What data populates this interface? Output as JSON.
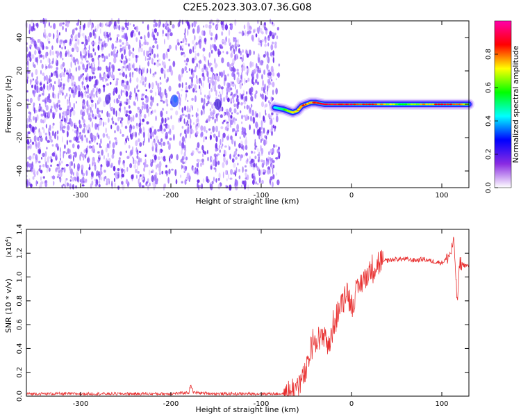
{
  "title": "C2E5.2023.303.07.36.G08",
  "chart_data": [
    {
      "type": "heatmap",
      "title": "C2E5.2023.303.07.36.G08",
      "xlabel": "Height of straight line (km)",
      "ylabel": "Frequency (Hz)",
      "xlim": [
        -360,
        130
      ],
      "ylim": [
        -50,
        50
      ],
      "xticks": [
        -300,
        -200,
        -100,
        0,
        100
      ],
      "yticks": [
        -40,
        -20,
        0,
        20,
        40
      ],
      "colorbar": {
        "label": "Normalized spectral amplitude",
        "range": [
          0.0,
          1.0
        ],
        "ticks": [
          0.0,
          0.2,
          0.4,
          0.6,
          0.8
        ],
        "tick_labels": [
          "0.0",
          "0.2",
          "0.4",
          "0.6",
          "0.8"
        ],
        "colors": [
          "#ffffff",
          "#8a2be2",
          "#0000ff",
          "#00ffff",
          "#00ff00",
          "#ffff00",
          "#ff0000",
          "#ff00aa"
        ]
      },
      "noise_region_x": [
        -360,
        -80
      ],
      "signal_track": {
        "x": [
          -85,
          -75,
          -70,
          -65,
          -60,
          -55,
          -50,
          -45,
          -40,
          -30,
          -20,
          -10,
          0,
          20,
          40,
          60,
          80,
          100,
          120,
          130
        ],
        "freq": [
          -2,
          -3,
          -4,
          -5,
          -4,
          -1,
          0,
          1,
          1,
          0,
          0,
          0,
          0,
          0,
          0,
          0,
          0,
          0,
          0,
          0
        ],
        "peak_amplitude": [
          0.45,
          0.6,
          0.7,
          0.75,
          0.8,
          0.85,
          0.85,
          0.8,
          0.9,
          0.95,
          0.95,
          0.95,
          0.95,
          0.9,
          0.75,
          0.6,
          0.8,
          0.95,
          0.85,
          0.7
        ]
      }
    },
    {
      "type": "line",
      "xlabel": "Height of straight line (km)",
      "ylabel": "SNR (10 * v/v)",
      "y_multiplier": "(x10",
      "y_multiplier_exp": "4",
      "y_multiplier_close": ")",
      "xlim": [
        -360,
        130
      ],
      "ylim": [
        0,
        1.4
      ],
      "xticks": [
        -300,
        -200,
        -100,
        0,
        100
      ],
      "yticks": [
        0.0,
        0.2,
        0.4,
        0.6,
        0.8,
        1.0,
        1.2,
        1.4
      ],
      "ytick_labels": [
        "0.0",
        "0.2",
        "0.4",
        "0.6",
        "0.8",
        "1.0",
        "1.2",
        "1.4"
      ],
      "series": [
        {
          "name": "SNR",
          "color": "#e83030",
          "x": [
            -360,
            -300,
            -200,
            -180,
            -178,
            -175,
            -150,
            -100,
            -70,
            -60,
            -50,
            -45,
            -40,
            -35,
            -30,
            -25,
            -20,
            -15,
            -10,
            -5,
            0,
            5,
            10,
            20,
            30,
            40,
            50,
            60,
            70,
            80,
            90,
            100,
            105,
            110,
            113,
            115,
            117,
            120,
            125,
            130
          ],
          "y": [
            0.02,
            0.02,
            0.02,
            0.03,
            0.1,
            0.03,
            0.02,
            0.02,
            0.02,
            0.08,
            0.2,
            0.4,
            0.5,
            0.45,
            0.55,
            0.4,
            0.6,
            0.7,
            0.8,
            0.9,
            0.75,
            0.85,
            0.95,
            1.05,
            1.12,
            1.14,
            1.15,
            1.15,
            1.14,
            1.15,
            1.13,
            1.12,
            1.15,
            1.2,
            1.3,
            1.1,
            0.78,
            1.12,
            1.1,
            1.09
          ]
        }
      ]
    }
  ]
}
